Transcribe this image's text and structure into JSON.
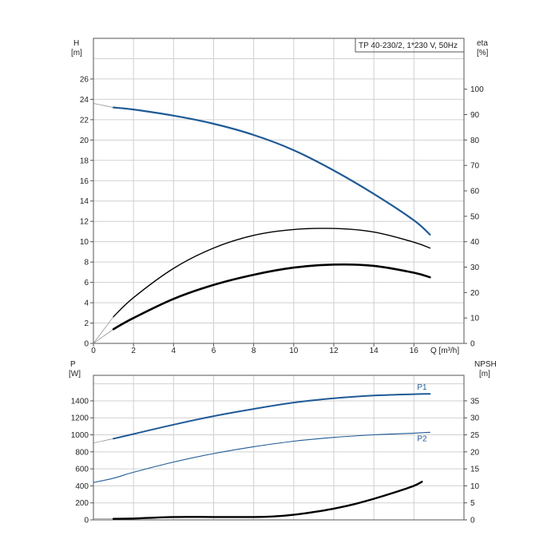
{
  "chart_data": [
    {
      "type": "line",
      "title": "TP 40-230/2, 1*230 V, 50Hz",
      "xlabel": "Q [m³/h]",
      "ylabel_left": [
        "H",
        "[m]"
      ],
      "ylabel_right": [
        "eta",
        "[%]"
      ],
      "xlim": [
        0,
        18.5
      ],
      "ylim": [
        0,
        30
      ],
      "y2lim": [
        0,
        120
      ],
      "x_ticks": [
        0,
        2,
        4,
        6,
        8,
        10,
        12,
        14,
        16
      ],
      "y_ticks": [
        0,
        2,
        4,
        6,
        8,
        10,
        12,
        14,
        16,
        18,
        20,
        22,
        24,
        26
      ],
      "y2_ticks": [
        0,
        10,
        20,
        30,
        40,
        50,
        60,
        70,
        80,
        90,
        100
      ],
      "grid": true,
      "series": [
        {
          "role": "head",
          "color": "#1f5a96",
          "x": [
            1,
            2,
            4,
            6,
            8,
            10,
            12,
            14,
            16,
            16.8
          ],
          "y": [
            23.2,
            23.0,
            22.4,
            21.6,
            20.5,
            19.0,
            17.0,
            14.7,
            12.1,
            10.7
          ],
          "extension": {
            "x": [
              0,
              1
            ],
            "y": [
              23.6,
              23.2
            ]
          }
        },
        {
          "role": "eta",
          "axis": "right",
          "color": "#000000",
          "x": [
            1,
            2,
            4,
            6,
            8,
            10,
            12,
            14,
            16,
            16.8
          ],
          "y": [
            10.5,
            18,
            29.5,
            37.5,
            42.5,
            44.8,
            45.2,
            43.8,
            39.8,
            37.5
          ],
          "extension": {
            "x": [
              0,
              1
            ],
            "y": [
              0,
              10.5
            ]
          }
        },
        {
          "role": "eta-total",
          "axis": "right",
          "color": "#000000",
          "x": [
            1,
            2,
            4,
            6,
            8,
            10,
            12,
            14,
            16,
            16.8
          ],
          "y": [
            5.6,
            10,
            17.5,
            23,
            27,
            29.8,
            31,
            30.5,
            27.8,
            26
          ],
          "extension": {
            "x": [
              0,
              1
            ],
            "y": [
              0,
              5.6
            ]
          }
        }
      ]
    },
    {
      "type": "line",
      "ylabel_left": [
        "P",
        "[W]"
      ],
      "ylabel_right": [
        "NPSH",
        "[m]"
      ],
      "xlim": [
        0,
        18.5
      ],
      "ylim": [
        0,
        1700
      ],
      "y2lim": [
        0,
        42.5
      ],
      "y_ticks": [
        0,
        200,
        400,
        600,
        800,
        1000,
        1200,
        1400
      ],
      "y2_ticks": [
        0,
        5,
        10,
        15,
        20,
        25,
        30,
        35
      ],
      "grid": true,
      "series": [
        {
          "name": "P1",
          "color": "#1f5a96",
          "x": [
            1,
            2,
            4,
            6,
            8,
            10,
            12,
            14,
            16,
            16.8
          ],
          "y": [
            955,
            1010,
            1120,
            1220,
            1305,
            1380,
            1430,
            1462,
            1478,
            1482
          ],
          "extension": {
            "x": [
              0,
              1
            ],
            "y": [
              905,
              955
            ]
          }
        },
        {
          "name": "P2",
          "color": "#1f5a96",
          "x": [
            0,
            1,
            2,
            4,
            6,
            8,
            10,
            12,
            14,
            16,
            16.8
          ],
          "y": [
            440,
            490,
            560,
            680,
            780,
            860,
            925,
            970,
            1000,
            1020,
            1030
          ]
        },
        {
          "role": "npsh",
          "axis": "right",
          "color": "#000000",
          "x": [
            1,
            2,
            4,
            6,
            8,
            9,
            10,
            11,
            12,
            13,
            14,
            15,
            16,
            16.4
          ],
          "y": [
            0.3,
            0.4,
            0.85,
            0.85,
            0.85,
            1.0,
            1.5,
            2.3,
            3.3,
            4.6,
            6.2,
            8.0,
            10.0,
            11.2
          ],
          "extension": {
            "x": [
              0,
              1
            ],
            "y": [
              0.3,
              0.3
            ]
          }
        }
      ]
    }
  ]
}
